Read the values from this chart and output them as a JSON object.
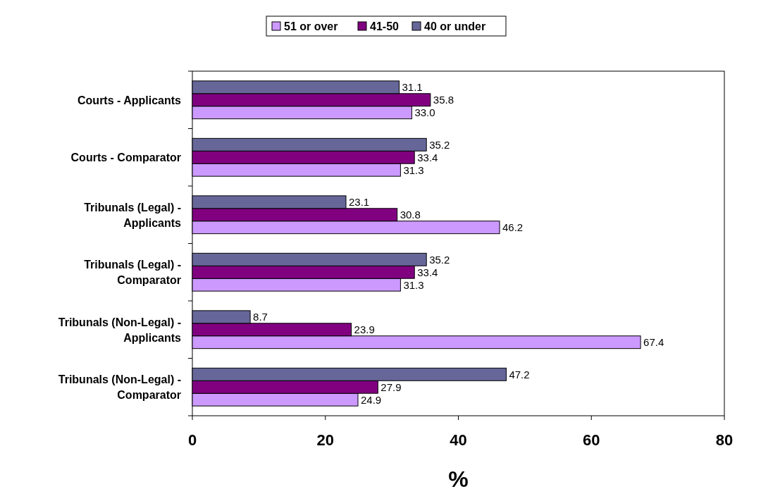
{
  "chart_data": {
    "type": "bar",
    "orientation": "horizontal",
    "xlabel": "%",
    "categories": [
      "Courts - Applicants",
      "Courts - Comparator",
      "Tribunals (Legal) - Applicants",
      "Tribunals (Legal) - Comparator",
      "Tribunals (Non-Legal) - Applicants",
      "Tribunals (Non-Legal) - Comparator"
    ],
    "series": [
      {
        "name": "51 or over",
        "color": "#cc99ff",
        "values": [
          33.0,
          31.3,
          46.2,
          31.3,
          67.4,
          24.9
        ],
        "value_labels": [
          "33.0",
          "31.3",
          "46.2",
          "31.3",
          "67.4",
          "24.9"
        ]
      },
      {
        "name": "41-50",
        "color": "#800080",
        "values": [
          35.8,
          33.4,
          30.8,
          33.4,
          23.9,
          27.9
        ],
        "value_labels": [
          "35.8",
          "33.4",
          "30.8",
          "33.4",
          "23.9",
          "27.9"
        ]
      },
      {
        "name": "40 or under",
        "color": "#666699",
        "values": [
          31.1,
          35.2,
          23.1,
          35.2,
          8.7,
          47.2
        ],
        "value_labels": [
          "31.1",
          "35.2",
          "23.1",
          "35.2",
          "8.7",
          "47.2"
        ]
      }
    ],
    "xlim": [
      0,
      80
    ],
    "xticks": [
      0,
      20,
      40,
      60,
      80
    ],
    "grid": false,
    "legend": "top"
  }
}
